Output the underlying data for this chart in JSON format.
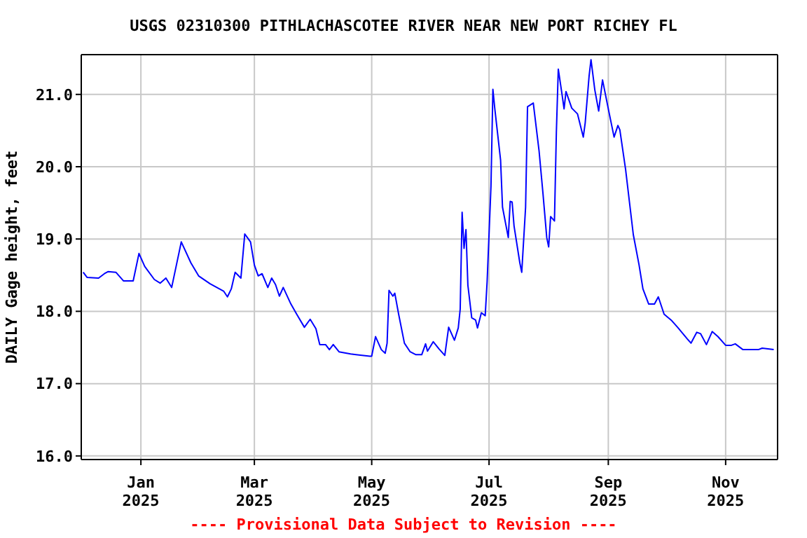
{
  "chart_data": {
    "type": "line",
    "title": "USGS 02310300 PITHLACHASCOTEE RIVER NEAR NEW PORT RICHEY FL",
    "ylabel": "DAILY Gage height, feet",
    "annotations": [
      "---- Provisional Data Subject to Revision ----"
    ],
    "x": [
      "2024-12-02",
      "2024-12-04",
      "2024-12-10",
      "2024-12-13",
      "2024-12-15",
      "2024-12-19",
      "2024-12-23",
      "2024-12-28",
      "2024-12-31",
      "2025-01-03",
      "2025-01-08",
      "2025-01-11",
      "2025-01-14",
      "2025-01-17",
      "2025-01-22",
      "2025-01-27",
      "2025-01-31",
      "2025-02-06",
      "2025-02-13",
      "2025-02-15",
      "2025-02-17",
      "2025-02-19",
      "2025-02-22",
      "2025-02-24",
      "2025-02-27",
      "2025-03-01",
      "2025-03-03",
      "2025-03-05",
      "2025-03-08",
      "2025-03-10",
      "2025-03-12",
      "2025-03-14",
      "2025-03-16",
      "2025-03-20",
      "2025-03-23",
      "2025-03-27",
      "2025-03-30",
      "2025-04-02",
      "2025-04-04",
      "2025-04-07",
      "2025-04-09",
      "2025-04-11",
      "2025-04-14",
      "2025-04-20",
      "2025-04-30",
      "2025-05-01",
      "2025-05-03",
      "2025-05-06",
      "2025-05-08",
      "2025-05-09",
      "2025-05-10",
      "2025-05-12",
      "2025-05-13",
      "2025-05-15",
      "2025-05-18",
      "2025-05-21",
      "2025-05-24",
      "2025-05-27",
      "2025-05-29",
      "2025-05-30",
      "2025-06-02",
      "2025-06-05",
      "2025-06-08",
      "2025-06-10",
      "2025-06-13",
      "2025-06-15",
      "2025-06-16",
      "2025-06-17",
      "2025-06-18",
      "2025-06-19",
      "2025-06-20",
      "2025-06-22",
      "2025-06-24",
      "2025-06-25",
      "2025-06-27",
      "2025-06-29",
      "2025-06-30",
      "2025-07-02",
      "2025-07-03",
      "2025-07-04",
      "2025-07-07",
      "2025-07-08",
      "2025-07-11",
      "2025-07-12",
      "2025-07-13",
      "2025-07-14",
      "2025-07-17",
      "2025-07-18",
      "2025-07-20",
      "2025-07-21",
      "2025-07-24",
      "2025-07-27",
      "2025-07-29",
      "2025-07-31",
      "2025-08-01",
      "2025-08-02",
      "2025-08-04",
      "2025-08-05",
      "2025-08-06",
      "2025-08-08",
      "2025-08-09",
      "2025-08-10",
      "2025-08-13",
      "2025-08-16",
      "2025-08-19",
      "2025-08-20",
      "2025-08-22",
      "2025-08-23",
      "2025-08-25",
      "2025-08-27",
      "2025-08-29",
      "2025-09-01",
      "2025-09-04",
      "2025-09-06",
      "2025-09-07",
      "2025-09-10",
      "2025-09-12",
      "2025-09-14",
      "2025-09-17",
      "2025-09-19",
      "2025-09-22",
      "2025-09-25",
      "2025-09-27",
      "2025-09-30",
      "2025-10-04",
      "2025-10-07",
      "2025-10-12",
      "2025-10-14",
      "2025-10-17",
      "2025-10-19",
      "2025-10-22",
      "2025-10-25",
      "2025-10-28",
      "2025-11-01",
      "2025-11-04",
      "2025-11-06",
      "2025-11-10",
      "2025-11-18",
      "2025-11-20",
      "2025-11-26"
    ],
    "series": [
      {
        "color": "#0000ff",
        "values": [
          18.54,
          18.47,
          18.46,
          18.52,
          18.55,
          18.54,
          18.42,
          18.42,
          18.8,
          18.62,
          18.44,
          18.39,
          18.46,
          18.33,
          18.96,
          18.67,
          18.49,
          18.38,
          18.28,
          18.2,
          18.31,
          18.54,
          18.46,
          19.07,
          18.96,
          18.64,
          18.49,
          18.52,
          18.33,
          18.46,
          18.37,
          18.21,
          18.33,
          18.1,
          17.96,
          17.78,
          17.89,
          17.76,
          17.54,
          17.54,
          17.47,
          17.54,
          17.44,
          17.41,
          17.38,
          17.38,
          17.65,
          17.47,
          17.42,
          17.56,
          18.29,
          18.21,
          18.25,
          17.96,
          17.56,
          17.44,
          17.4,
          17.4,
          17.55,
          17.45,
          17.58,
          17.48,
          17.39,
          17.78,
          17.6,
          17.77,
          18.03,
          19.37,
          18.87,
          19.13,
          18.36,
          17.91,
          17.88,
          17.77,
          17.98,
          17.94,
          18.41,
          19.73,
          21.07,
          20.8,
          20.09,
          19.44,
          19.02,
          19.52,
          19.51,
          19.18,
          18.67,
          18.54,
          19.44,
          20.83,
          20.88,
          20.22,
          19.64,
          19.02,
          18.89,
          19.31,
          19.25,
          20.48,
          21.35,
          20.99,
          20.8,
          21.04,
          20.81,
          20.73,
          20.41,
          20.61,
          21.25,
          21.48,
          21.06,
          20.77,
          21.2,
          20.8,
          20.41,
          20.57,
          20.51,
          19.96,
          19.51,
          19.06,
          18.64,
          18.31,
          18.1,
          18.1,
          18.2,
          17.96,
          17.87,
          17.78,
          17.62,
          17.56,
          17.71,
          17.69,
          17.54,
          17.72,
          17.65,
          17.53,
          17.53,
          17.55,
          17.47,
          17.47,
          17.49,
          17.47
        ]
      }
    ],
    "xlim": [
      "2024-12-01",
      "2025-11-28"
    ],
    "xticks": [
      {
        "value": "2025-01-01",
        "label": "Jan\n2025"
      },
      {
        "value": "2025-03-01",
        "label": "Mar\n2025"
      },
      {
        "value": "2025-05-01",
        "label": "May\n2025"
      },
      {
        "value": "2025-07-01",
        "label": "Jul\n2025"
      },
      {
        "value": "2025-09-01",
        "label": "Sep\n2025"
      },
      {
        "value": "2025-11-01",
        "label": "Nov\n2025"
      }
    ],
    "ylim": [
      15.95,
      21.55
    ],
    "yticks": [
      {
        "value": 16,
        "label": "16.0"
      },
      {
        "value": 17,
        "label": "17.0"
      },
      {
        "value": 18,
        "label": "18.0"
      },
      {
        "value": 19,
        "label": "19.0"
      },
      {
        "value": 20,
        "label": "20.0"
      },
      {
        "value": 21,
        "label": "21.0"
      }
    ],
    "grid": true,
    "marker": "none",
    "line_style": "solid"
  }
}
